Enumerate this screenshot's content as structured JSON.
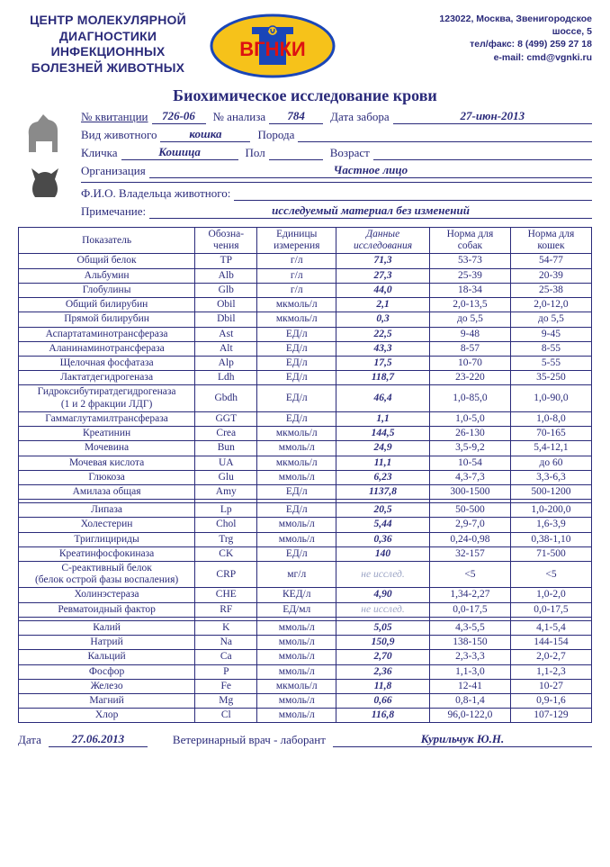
{
  "header": {
    "org_name": "ЦЕНТР МОЛЕКУЛЯРНОЙ ДИАГНОСТИКИ ИНФЕКЦИОННЫХ БОЛЕЗНЕЙ ЖИВОТНЫХ",
    "logo_text": "ВГНКИ",
    "addr_line1": "123022, Москва,    Звенигородское",
    "addr_line2": "шоссе, 5",
    "tel": "тел/факс: 8 (499) 259 27 18",
    "email": "e-mail: cmd@vgnki.ru"
  },
  "title": "Биохимическое исследование крови",
  "meta": {
    "receipt_label": "№ квитанции",
    "receipt": "726-06",
    "analysis_label": "№ анализа",
    "analysis": "784",
    "date_taken_label": "Дата забора",
    "date_taken": "27-июн-2013",
    "species_label": "Вид животного",
    "species": "кошка",
    "breed_label": "Порода",
    "breed": "",
    "name_label": "Кличка",
    "name": "Кошица",
    "sex_label": "Пол",
    "sex": "",
    "age_label": "Возраст",
    "age": "",
    "org_label": "Организация",
    "org": "Частное лицо",
    "owner_label": "Ф.И.О. Владельца животного:",
    "owner": "",
    "note_label": "Примечание:",
    "note": "исследуемый материал без изменений"
  },
  "columns": {
    "indicator": "Показатель",
    "abbr": "Обозна-\nчения",
    "unit": "Единицы\nизмерения",
    "value": "Данные\nисследования",
    "dog": "Норма для\nсобак",
    "cat": "Норма для\nкошек"
  },
  "rows1": [
    {
      "ind": "Общий белок",
      "ab": "TP",
      "un": "г/л",
      "val": "71,3",
      "dog": "53-73",
      "cat": "54-77"
    },
    {
      "ind": "Альбумин",
      "ab": "Alb",
      "un": "г/л",
      "val": "27,3",
      "dog": "25-39",
      "cat": "20-39"
    },
    {
      "ind": "Глобулины",
      "ab": "Glb",
      "un": "г/л",
      "val": "44,0",
      "dog": "18-34",
      "cat": "25-38"
    },
    {
      "ind": "Общий билирубин",
      "ab": "Obil",
      "un": "мкмоль/л",
      "val": "2,1",
      "dog": "2,0-13,5",
      "cat": "2,0-12,0"
    },
    {
      "ind": "Прямой билирубин",
      "ab": "Dbil",
      "un": "мкмоль/л",
      "val": "0,3",
      "dog": "до 5,5",
      "cat": "до 5,5"
    },
    {
      "ind": "Аспартатаминотрансфераза",
      "ab": "Ast",
      "un": "ЕД/л",
      "val": "22,5",
      "dog": "9-48",
      "cat": "9-45"
    },
    {
      "ind": "Аланинаминотрансфераза",
      "ab": "Alt",
      "un": "ЕД/л",
      "val": "43,3",
      "dog": "8-57",
      "cat": "8-55"
    },
    {
      "ind": "Щелочная фосфатаза",
      "ab": "Alp",
      "un": "ЕД/л",
      "val": "17,5",
      "dog": "10-70",
      "cat": "5-55"
    },
    {
      "ind": "Лактатдегидрогеназа",
      "ab": "Ldh",
      "un": "ЕД/л",
      "val": "118,7",
      "dog": "23-220",
      "cat": "35-250"
    },
    {
      "ind": "Гидроксибутиратдегидрогеназа\n(1 и 2 фракции ЛДГ)",
      "ab": "Gbdh",
      "un": "ЕД/л",
      "val": "46,4",
      "dog": "1,0-85,0",
      "cat": "1,0-90,0"
    },
    {
      "ind": "Гаммаглутамилтрансфераза",
      "ab": "GGT",
      "un": "ЕД/л",
      "val": "1,1",
      "dog": "1,0-5,0",
      "cat": "1,0-8,0"
    },
    {
      "ind": "Креатинин",
      "ab": "Crea",
      "un": "мкмоль/л",
      "val": "144,5",
      "dog": "26-130",
      "cat": "70-165"
    },
    {
      "ind": "Мочевина",
      "ab": "Bun",
      "un": "ммоль/л",
      "val": "24,9",
      "dog": "3,5-9,2",
      "cat": "5,4-12,1"
    },
    {
      "ind": "Мочевая кислота",
      "ab": "UA",
      "un": "мкмоль/л",
      "val": "11,1",
      "dog": "10-54",
      "cat": "до 60"
    },
    {
      "ind": "Глюкоза",
      "ab": "Glu",
      "un": "ммоль/л",
      "val": "6,23",
      "dog": "4,3-7,3",
      "cat": "3,3-6,3"
    },
    {
      "ind": "Амилаза общая",
      "ab": "Amy",
      "un": "ЕД/л",
      "val": "1137,8",
      "dog": "300-1500",
      "cat": "500-1200"
    }
  ],
  "rows2": [
    {
      "ind": "Липаза",
      "ab": "Lp",
      "un": "ЕД/л",
      "val": "20,5",
      "dog": "50-500",
      "cat": "1,0-200,0"
    },
    {
      "ind": "Холестерин",
      "ab": "Chol",
      "un": "ммоль/л",
      "val": "5,44",
      "dog": "2,9-7,0",
      "cat": "1,6-3,9"
    },
    {
      "ind": "Триглицириды",
      "ab": "Trg",
      "un": "ммоль/л",
      "val": "0,36",
      "dog": "0,24-0,98",
      "cat": "0,38-1,10"
    },
    {
      "ind": "Креатинфосфокиназа",
      "ab": "CK",
      "un": "ЕД/л",
      "val": "140",
      "dog": "32-157",
      "cat": "71-500"
    },
    {
      "ind": "С-реактивный белок\n(белок острой фазы воспаления)",
      "ab": "CRP",
      "un": "мг/л",
      "val": "не исслед.",
      "dog": "<5",
      "cat": "<5",
      "ni": true
    },
    {
      "ind": "Холинэстераза",
      "ab": "CHE",
      "un": "КЕД/л",
      "val": "4,90",
      "dog": "1,34-2,27",
      "cat": "1,0-2,0"
    },
    {
      "ind": "Ревматоидный фактор",
      "ab": "RF",
      "un": "ЕД/мл",
      "val": "не исслед.",
      "dog": "0,0-17,5",
      "cat": "0,0-17,5",
      "ni": true
    }
  ],
  "rows3": [
    {
      "ind": "Калий",
      "ab": "K",
      "un": "ммоль/л",
      "val": "5,05",
      "dog": "4,3-5,5",
      "cat": "4,1-5,4"
    },
    {
      "ind": "Натрий",
      "ab": "Na",
      "un": "ммоль/л",
      "val": "150,9",
      "dog": "138-150",
      "cat": "144-154"
    },
    {
      "ind": "Кальций",
      "ab": "Ca",
      "un": "ммоль/л",
      "val": "2,70",
      "dog": "2,3-3,3",
      "cat": "2,0-2,7"
    },
    {
      "ind": "Фосфор",
      "ab": "P",
      "un": "ммоль/л",
      "val": "2,36",
      "dog": "1,1-3,0",
      "cat": "1,1-2,3"
    },
    {
      "ind": "Железо",
      "ab": "Fe",
      "un": "мкмоль/л",
      "val": "11,8",
      "dog": "12-41",
      "cat": "10-27"
    },
    {
      "ind": "Магний",
      "ab": "Mg",
      "un": "ммоль/л",
      "val": "0,66",
      "dog": "0,8-1,4",
      "cat": "0,9-1,6"
    },
    {
      "ind": "Хлор",
      "ab": "Cl",
      "un": "ммоль/л",
      "val": "116,8",
      "dog": "96,0-122,0",
      "cat": "107-129"
    }
  ],
  "footer": {
    "date_label": "Дата",
    "date": "27.06.2013",
    "vet_label": "Ветеринарный врач - лаборант",
    "vet": "Курильчук Ю.Н."
  }
}
